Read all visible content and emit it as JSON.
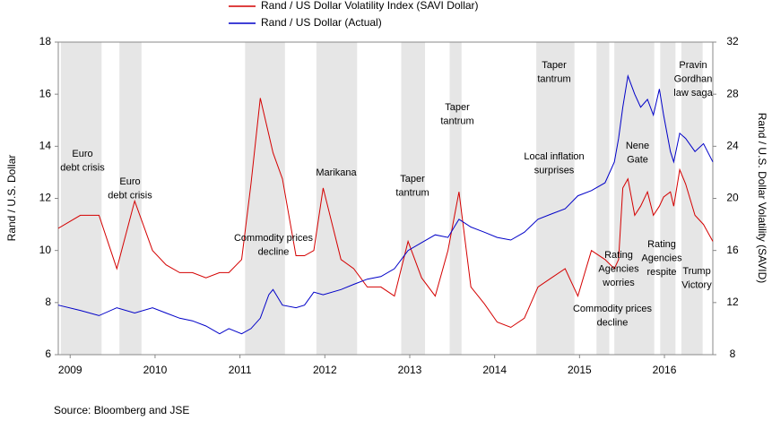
{
  "chart_data": {
    "type": "line",
    "legend": "top",
    "grid": false,
    "y_label": "Rand / U.S. Dollar",
    "y2_label": "Rand / U.S. Dollar Volatility (SAVID)",
    "source": "Source: Bloomberg and JSE",
    "xlim": [
      2008.86,
      2016.57
    ],
    "xticks": [
      2009,
      2010,
      2011,
      2012,
      2013,
      2014,
      2015,
      2016
    ],
    "ylim": [
      6,
      18
    ],
    "yticks": [
      6,
      8,
      10,
      12,
      14,
      16,
      18
    ],
    "y2lim": [
      8,
      32
    ],
    "y2ticks": [
      8,
      12,
      16,
      20,
      24,
      28,
      32
    ],
    "shade_color": "#e6e6e6",
    "shaded_periods": [
      [
        2008.89,
        2009.37
      ],
      [
        2009.58,
        2009.84
      ],
      [
        2011.06,
        2011.53
      ],
      [
        2011.9,
        2012.38
      ],
      [
        2012.9,
        2013.18
      ],
      [
        2013.47,
        2013.61
      ],
      [
        2014.49,
        2014.94
      ],
      [
        2015.2,
        2015.35
      ],
      [
        2015.41,
        2015.88
      ],
      [
        2015.95,
        2016.13
      ],
      [
        2016.2,
        2016.45
      ]
    ],
    "x": [
      2008.86,
      2009.12,
      2009.34,
      2009.55,
      2009.76,
      2009.97,
      2010.13,
      2010.29,
      2010.44,
      2010.6,
      2010.76,
      2010.87,
      2011.02,
      2011.13,
      2011.24,
      2011.34,
      2011.39,
      2011.5,
      2011.66,
      2011.76,
      2011.87,
      2011.98,
      2012.19,
      2012.34,
      2012.5,
      2012.66,
      2012.82,
      2012.98,
      2013.14,
      2013.3,
      2013.45,
      2013.58,
      2013.72,
      2013.88,
      2014.03,
      2014.19,
      2014.35,
      2014.51,
      2014.67,
      2014.83,
      2014.98,
      2015.14,
      2015.3,
      2015.41,
      2015.46,
      2015.51,
      2015.57,
      2015.65,
      2015.72,
      2015.8,
      2015.87,
      2015.94,
      2015.99,
      2016.07,
      2016.11,
      2016.18,
      2016.25,
      2016.36,
      2016.46,
      2016.57
    ],
    "series": [
      {
        "name": "Rand / US Dollar Volatility Index (SAVI Dollar)",
        "color": "#d40000",
        "axis": "y2",
        "values": [
          17.7,
          18.7,
          18.7,
          14.6,
          19.8,
          16.0,
          14.9,
          14.3,
          14.3,
          13.9,
          14.3,
          14.3,
          15.3,
          21.1,
          27.7,
          24.9,
          23.5,
          21.5,
          15.6,
          15.6,
          16.0,
          20.8,
          15.3,
          14.6,
          13.2,
          13.2,
          12.5,
          16.7,
          13.9,
          12.5,
          16.0,
          20.5,
          13.2,
          11.9,
          10.5,
          10.1,
          10.8,
          13.2,
          13.9,
          14.6,
          12.5,
          16.0,
          15.3,
          14.6,
          15.3,
          20.8,
          21.5,
          18.7,
          19.4,
          20.5,
          18.7,
          19.4,
          20.1,
          20.5,
          19.4,
          22.2,
          21.1,
          18.7,
          18.0,
          16.7
        ]
      },
      {
        "name": "Rand / US Dollar (Actual)",
        "color": "#0000c8",
        "values": [
          7.9,
          7.7,
          7.5,
          7.8,
          7.6,
          7.8,
          7.6,
          7.4,
          7.3,
          7.1,
          6.8,
          7.0,
          6.8,
          7.0,
          7.4,
          8.3,
          8.5,
          7.9,
          7.8,
          7.9,
          8.4,
          8.3,
          8.5,
          8.7,
          8.9,
          9.0,
          9.3,
          10.0,
          10.3,
          10.6,
          10.5,
          11.2,
          10.9,
          10.7,
          10.5,
          10.4,
          10.7,
          11.2,
          11.4,
          11.6,
          12.1,
          12.3,
          12.6,
          13.4,
          14.3,
          15.5,
          16.7,
          16.0,
          15.5,
          15.8,
          15.2,
          16.2,
          15.2,
          13.8,
          13.4,
          14.5,
          14.3,
          13.8,
          14.1,
          13.4
        ]
      }
    ],
    "annotations": [
      {
        "lines": [
          "Euro",
          "debt crisis"
        ]
      },
      {
        "lines": [
          "Euro",
          "debt crisis"
        ]
      },
      {
        "lines": [
          "Commodity prices",
          "decline"
        ]
      },
      {
        "lines": [
          "Marikana"
        ]
      },
      {
        "lines": [
          "Taper",
          "tantrum"
        ]
      },
      {
        "lines": [
          "Taper",
          "tantrum"
        ]
      },
      {
        "lines": [
          "Taper",
          "tantrum"
        ]
      },
      {
        "lines": [
          "Local inflation",
          "surprises"
        ]
      },
      {
        "lines": [
          "Nene",
          "Gate"
        ]
      },
      {
        "lines": [
          "Pravin",
          "Gordhan",
          "law saga"
        ]
      },
      {
        "lines": [
          "Rating",
          "Agencies",
          "worries"
        ]
      },
      {
        "lines": [
          "Commodity prices",
          "decline"
        ]
      },
      {
        "lines": [
          "Rating",
          "Agencies",
          "respite"
        ]
      },
      {
        "lines": [
          "Trump",
          "Victory"
        ]
      }
    ]
  }
}
